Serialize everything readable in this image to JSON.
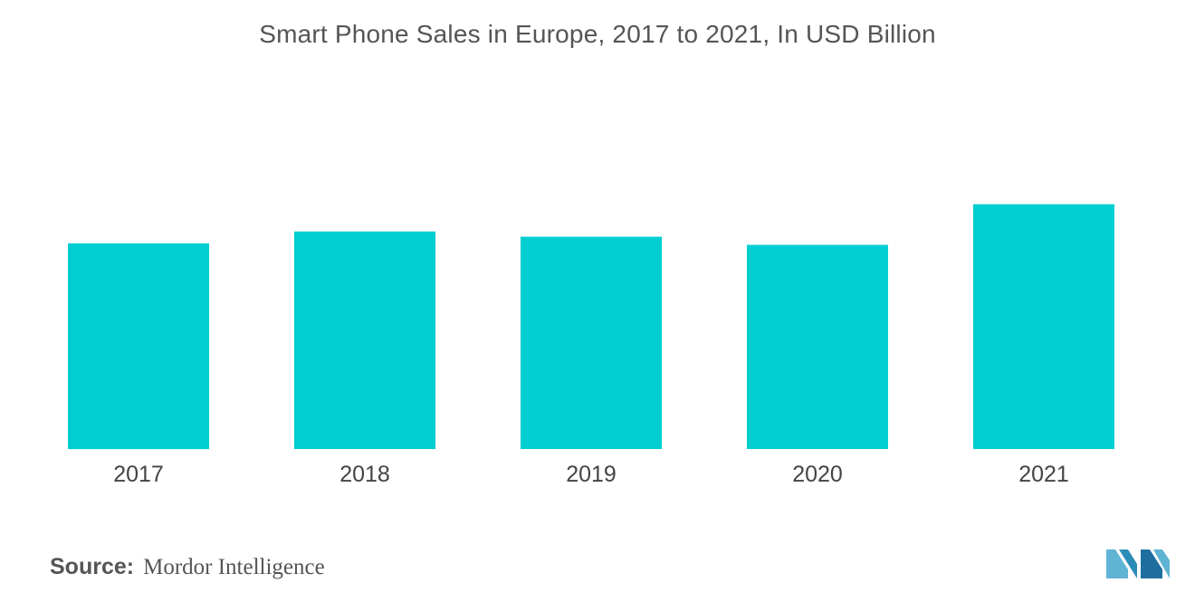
{
  "chart_data": {
    "type": "bar",
    "title": "Smart Phone Sales in Europe, 2017 to 2021, In USD Billion",
    "categories": [
      "2017",
      "2018",
      "2019",
      "2020",
      "2021"
    ],
    "values": [
      50.5,
      53.4,
      52.1,
      50.1,
      60.1
    ],
    "xlabel": "",
    "ylabel": "",
    "ylim": [
      0,
      100
    ],
    "grid": false,
    "legend": "none",
    "bar_color": "#00CED1"
  },
  "source": {
    "label": "Source:",
    "value": "Mordor Intelligence"
  },
  "logo": {
    "icon": "mordor-intelligence-logo",
    "colors": [
      "#5FB3D3",
      "#2B8CB8",
      "#1E6FA0"
    ]
  }
}
